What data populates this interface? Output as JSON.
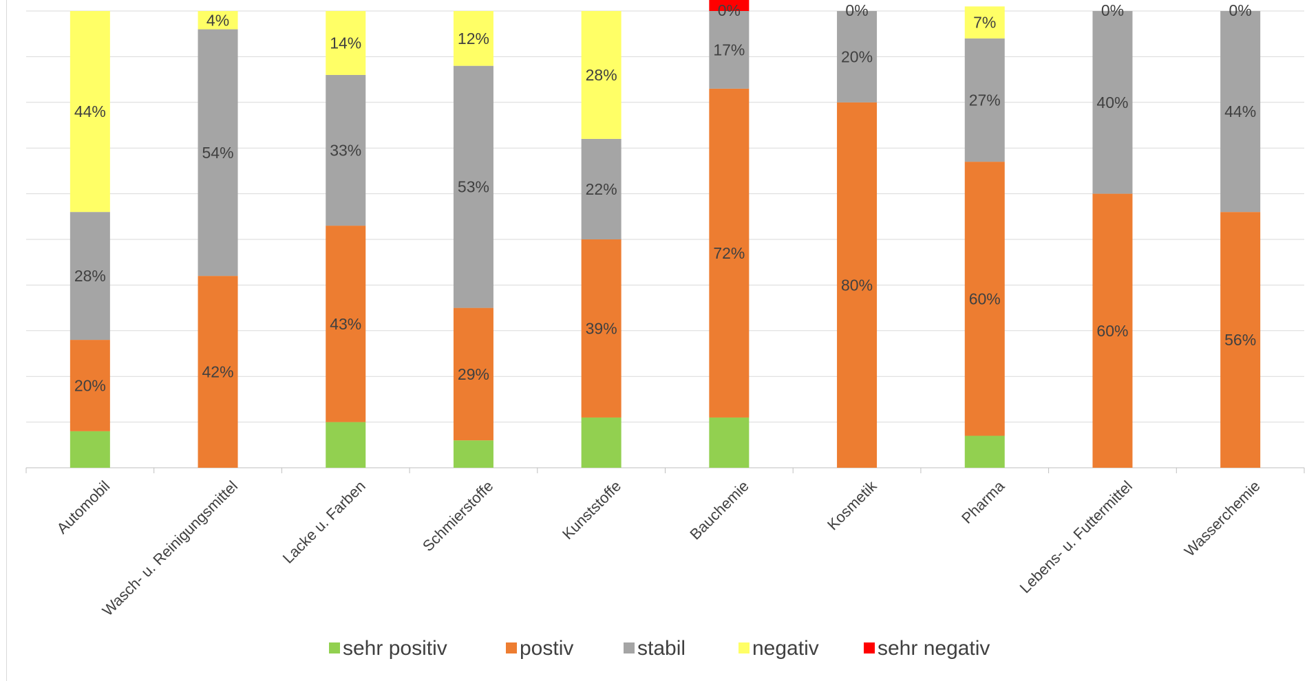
{
  "chart_data": {
    "type": "bar",
    "stacked": true,
    "normalized": true,
    "categories": [
      "Automobil",
      "Wasch- u. Reinigungsmittel",
      "Lacke u. Farben",
      "Schmierstoffe",
      "Kunststoffe",
      "Bauchemie",
      "Kosmetik",
      "Pharma",
      "Lebens- u. Futtermittel",
      "Wasserchemie"
    ],
    "series": [
      {
        "name": "sehr positiv",
        "color": "#92d050",
        "values": [
          8,
          0,
          10,
          6,
          11,
          11,
          0,
          7,
          0,
          0
        ]
      },
      {
        "name": "postiv",
        "color": "#ed7d31",
        "values": [
          20,
          42,
          43,
          29,
          39,
          72,
          80,
          60,
          60,
          56
        ]
      },
      {
        "name": "stabil",
        "color": "#a5a5a5",
        "values": [
          28,
          54,
          33,
          53,
          22,
          17,
          20,
          27,
          40,
          44
        ]
      },
      {
        "name": "negativ",
        "color": "#ffff66",
        "values": [
          44,
          4,
          14,
          12,
          28,
          0,
          0,
          7,
          0,
          0
        ]
      },
      {
        "name": "sehr negativ",
        "color": "#ff0000",
        "values": [
          0,
          0,
          0,
          0,
          0,
          4,
          0,
          0,
          0,
          0
        ]
      }
    ],
    "data_labels": [
      {
        "category": "Automobil",
        "series": "postiv",
        "text": "20%"
      },
      {
        "category": "Automobil",
        "series": "stabil",
        "text": "28%"
      },
      {
        "category": "Automobil",
        "series": "negativ",
        "text": "44%"
      },
      {
        "category": "Wasch- u. Reinigungsmittel",
        "series": "postiv",
        "text": "42%"
      },
      {
        "category": "Wasch- u. Reinigungsmittel",
        "series": "stabil",
        "text": "54%"
      },
      {
        "category": "Wasch- u. Reinigungsmittel",
        "series": "negativ",
        "text": "4%"
      },
      {
        "category": "Lacke u. Farben",
        "series": "postiv",
        "text": "43%"
      },
      {
        "category": "Lacke u. Farben",
        "series": "stabil",
        "text": "33%"
      },
      {
        "category": "Lacke u. Farben",
        "series": "negativ",
        "text": "14%"
      },
      {
        "category": "Schmierstoffe",
        "series": "postiv",
        "text": "29%"
      },
      {
        "category": "Schmierstoffe",
        "series": "stabil",
        "text": "53%"
      },
      {
        "category": "Schmierstoffe",
        "series": "negativ",
        "text": "12%"
      },
      {
        "category": "Kunststoffe",
        "series": "postiv",
        "text": "39%"
      },
      {
        "category": "Kunststoffe",
        "series": "stabil",
        "text": "22%"
      },
      {
        "category": "Kunststoffe",
        "series": "negativ",
        "text": "28%"
      },
      {
        "category": "Bauchemie",
        "series": "postiv",
        "text": "72%"
      },
      {
        "category": "Bauchemie",
        "series": "stabil",
        "text": "17%"
      },
      {
        "category": "Bauchemie",
        "series": "negativ",
        "text": "0%"
      },
      {
        "category": "Kosmetik",
        "series": "postiv",
        "text": "80%"
      },
      {
        "category": "Kosmetik",
        "series": "stabil",
        "text": "20%"
      },
      {
        "category": "Kosmetik",
        "series": "negativ",
        "text": "0%"
      },
      {
        "category": "Pharma",
        "series": "postiv",
        "text": "60%"
      },
      {
        "category": "Pharma",
        "series": "stabil",
        "text": "27%"
      },
      {
        "category": "Pharma",
        "series": "negativ",
        "text": "7%"
      },
      {
        "category": "Lebens- u. Futtermittel",
        "series": "postiv",
        "text": "60%"
      },
      {
        "category": "Lebens- u. Futtermittel",
        "series": "stabil",
        "text": "40%"
      },
      {
        "category": "Lebens- u. Futtermittel",
        "series": "negativ",
        "text": "0%"
      },
      {
        "category": "Wasserchemie",
        "series": "postiv",
        "text": "56%"
      },
      {
        "category": "Wasserchemie",
        "series": "stabil",
        "text": "44%"
      },
      {
        "category": "Wasserchemie",
        "series": "negativ",
        "text": "0%"
      }
    ],
    "ylim": [
      0,
      100
    ],
    "grid": true,
    "legend": "bottom",
    "title": "",
    "xlabel": "",
    "ylabel": ""
  }
}
